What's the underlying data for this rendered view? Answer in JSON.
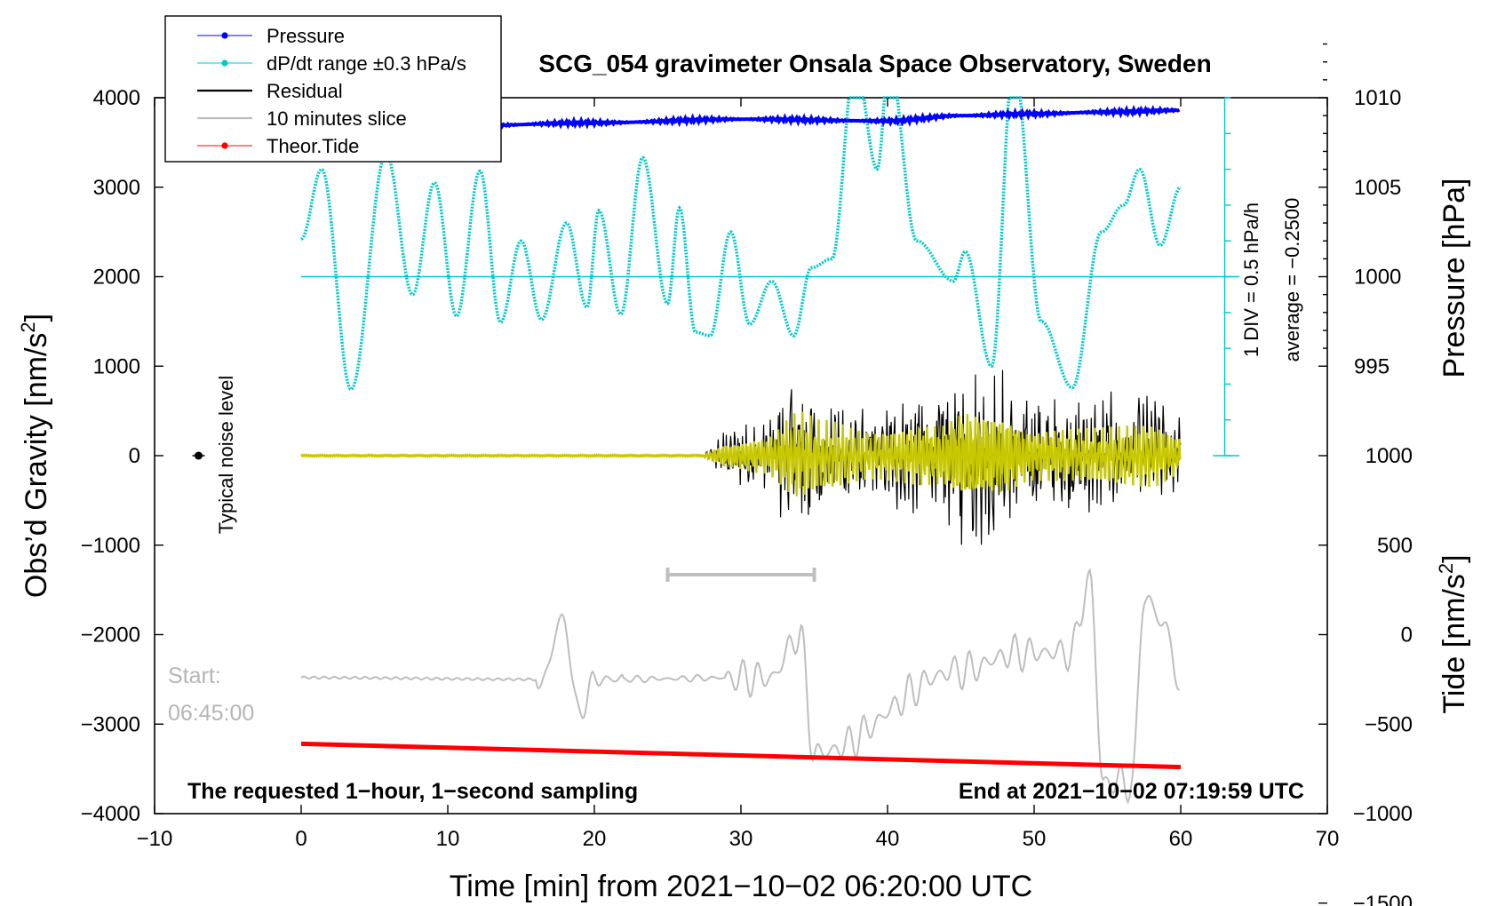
{
  "chart_data": {
    "type": "line",
    "title": "SCG_054 gravimeter Onsala Space Observatory, Sweden",
    "xlabel": "Time [min] from 2021−10−02 06:20:00 UTC",
    "ylabel_left": "Obs’d Gravity [nm/s",
    "ylabel_left_sup": "2",
    "ylabel_left_end": "]",
    "ylabel_right_top": "Pressure [hPa]",
    "ylabel_right_bottom": "Tide [nm/s",
    "ylabel_right_bottom_sup": "2",
    "ylabel_right_bottom_end": "]",
    "xlim": [
      -10,
      70
    ],
    "ylim": [
      -4000,
      4000
    ],
    "pressure_lim": [
      994,
      1014
    ],
    "tide_lim": [
      -1500,
      1500
    ],
    "x_ticks": [
      "−10",
      "0",
      "10",
      "20",
      "30",
      "40",
      "50",
      "60",
      "70"
    ],
    "x_tick_values": [
      -10,
      0,
      10,
      20,
      30,
      40,
      50,
      60,
      70
    ],
    "y_ticks": [
      "4000",
      "3000",
      "2000",
      "1000",
      "0",
      "−1000",
      "−2000",
      "−3000",
      "−4000"
    ],
    "y_tick_values": [
      4000,
      3000,
      2000,
      1000,
      0,
      -1000,
      -2000,
      -3000,
      -4000
    ],
    "pressure_ticks": [
      "1010",
      "1005",
      "1000",
      "995"
    ],
    "pressure_tick_values": [
      1010,
      1005,
      1000,
      995
    ],
    "tide_ticks": [
      "1000",
      "500",
      "0",
      "−500",
      "−1000",
      "−1500"
    ],
    "tide_tick_values": [
      1000,
      500,
      0,
      -500,
      -1000,
      -1500
    ],
    "legend": [
      {
        "label": "Pressure",
        "color": "#0000ff",
        "marker": true
      },
      {
        "label": "dP/dt range ±0.3 hPa/s",
        "color": "#00c8c8",
        "marker": true
      },
      {
        "label": "Residual",
        "color": "#000000",
        "marker": false
      },
      {
        "label": "10 minutes slice",
        "color": "#bebebe",
        "marker": false
      },
      {
        "label": "Theor.Tide",
        "color": "#ff0000",
        "marker": true
      }
    ],
    "colors": {
      "pressure": "#0000ff",
      "dpdt": "#00c8c8",
      "residual": "#000000",
      "residual_filtered": "#c8c800",
      "slice": "#bebebe",
      "tide": "#ff0000"
    },
    "annotations": {
      "noise_label": "Typical noise level",
      "noise_point": {
        "x": -7,
        "y": 0
      },
      "div_label": "1 DIV = 0.5 hPa/h",
      "avg_label": "average = −0.2500",
      "dpdt_baseline": 2000,
      "start_label_1": "Start:",
      "start_label_2": "06:45:00",
      "slice_bar": {
        "x_start": 25,
        "x_end": 35,
        "y": -1330
      },
      "footer_left": "The requested 1−hour, 1−second sampling",
      "footer_right": "End at 2021−10−02 07:19:59 UTC"
    },
    "series": [
      {
        "name": "Pressure",
        "x": [
          0,
          10,
          20,
          30,
          40,
          45,
          50,
          55,
          60
        ],
        "values": [
          1008.3,
          1008.4,
          1008.6,
          1008.8,
          1008.7,
          1009.0,
          1009.1,
          1009.2,
          1009.3
        ],
        "axis": "pressure"
      },
      {
        "name": "dP/dt",
        "x": [
          0,
          1.4,
          3.4,
          5.8,
          7.6,
          9.1,
          10.6,
          12.2,
          13.6,
          15.0,
          16.4,
          18.1,
          19.5,
          20.3,
          21.8,
          23.3,
          25.0,
          25.8,
          26.9,
          27.9,
          29.3,
          30.6,
          32.1,
          33.6,
          34.8,
          36.2,
          37.8,
          39.3,
          40.1,
          42.0,
          44.5,
          45.3,
          47.1,
          48.6,
          50.5,
          52.6,
          54.6,
          56.1,
          57.2,
          58.6,
          60.0
        ],
        "values": [
          2420,
          3200,
          740,
          3380,
          1800,
          3050,
          1560,
          3180,
          1490,
          2400,
          1520,
          2600,
          1660,
          2740,
          1580,
          3330,
          1700,
          2770,
          1380,
          1340,
          2500,
          1470,
          1950,
          1340,
          2100,
          2200,
          4400,
          3200,
          4400,
          2400,
          1950,
          2280,
          1000,
          4400,
          1500,
          760,
          2500,
          2800,
          3200,
          2350,
          3000
        ],
        "axis": "left"
      },
      {
        "name": "Residual",
        "x": [
          0,
          27.5,
          29,
          31.5,
          34,
          35.5,
          39,
          43.5,
          45.5,
          46.5,
          47.5,
          50,
          54,
          58,
          60
        ],
        "values": [
          0,
          60,
          350,
          500,
          1150,
          900,
          600,
          850,
          1300,
          1200,
          1180,
          700,
          700,
          800,
          500
        ],
        "axis": "left",
        "note": "envelope amplitude of the residual trace"
      },
      {
        "name": "10 minutes slice",
        "x": [
          0,
          16.5,
          17.8,
          19,
          20,
          32,
          34,
          35,
          45,
          49,
          52.5,
          53.8,
          54.7,
          56.7,
          57.5,
          59.3,
          60
        ],
        "values": [
          -2480,
          -2500,
          -1800,
          -2880,
          -2500,
          -2480,
          -2000,
          -3330,
          -2400,
          -2200,
          -2200,
          -1380,
          -3650,
          -3650,
          -1580,
          -2000,
          -2840
        ],
        "axis": "left"
      },
      {
        "name": "Theor.Tide",
        "x": [
          0,
          60
        ],
        "values": [
          -610,
          -740
        ],
        "axis": "tide"
      }
    ]
  }
}
